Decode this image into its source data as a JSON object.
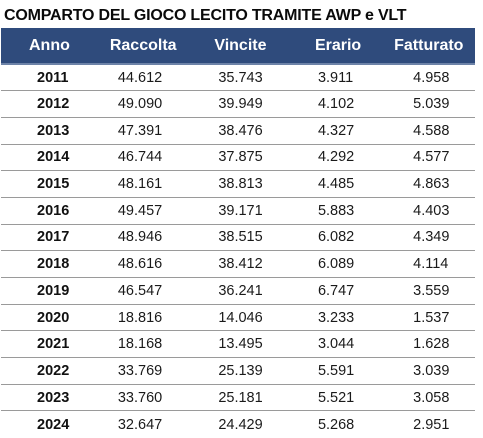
{
  "title": "COMPARTO DEL GIOCO LECITO TRAMITE AWP e VLT",
  "columns": [
    "Anno",
    "Raccolta",
    "Vincite",
    "Erario",
    "Fatturato"
  ],
  "rows": [
    [
      "2011",
      "44.612",
      "35.743",
      "3.911",
      "4.958"
    ],
    [
      "2012",
      "49.090",
      "39.949",
      "4.102",
      "5.039"
    ],
    [
      "2013",
      "47.391",
      "38.476",
      "4.327",
      "4.588"
    ],
    [
      "2014",
      "46.744",
      "37.875",
      "4.292",
      "4.577"
    ],
    [
      "2015",
      "48.161",
      "38.813",
      "4.485",
      "4.863"
    ],
    [
      "2016",
      "49.457",
      "39.171",
      "5.883",
      "4.403"
    ],
    [
      "2017",
      "48.946",
      "38.515",
      "6.082",
      "4.349"
    ],
    [
      "2018",
      "48.616",
      "38.412",
      "6.089",
      "4.114"
    ],
    [
      "2019",
      "46.547",
      "36.241",
      "6.747",
      "3.559"
    ],
    [
      "2020",
      "18.816",
      "14.046",
      "3.233",
      "1.537"
    ],
    [
      "2021",
      "18.168",
      "13.495",
      "3.044",
      "1.628"
    ],
    [
      "2022",
      "33.769",
      "25.139",
      "5.591",
      "3.039"
    ],
    [
      "2023",
      "33.760",
      "25.181",
      "5.521",
      "3.058"
    ],
    [
      "2024",
      "32.647",
      "24.429",
      "5.268",
      "2.951"
    ]
  ],
  "colors": {
    "header_background": "#2f4b7c",
    "header_text": "#ffffff",
    "row_divider": "#9a9a9a"
  }
}
